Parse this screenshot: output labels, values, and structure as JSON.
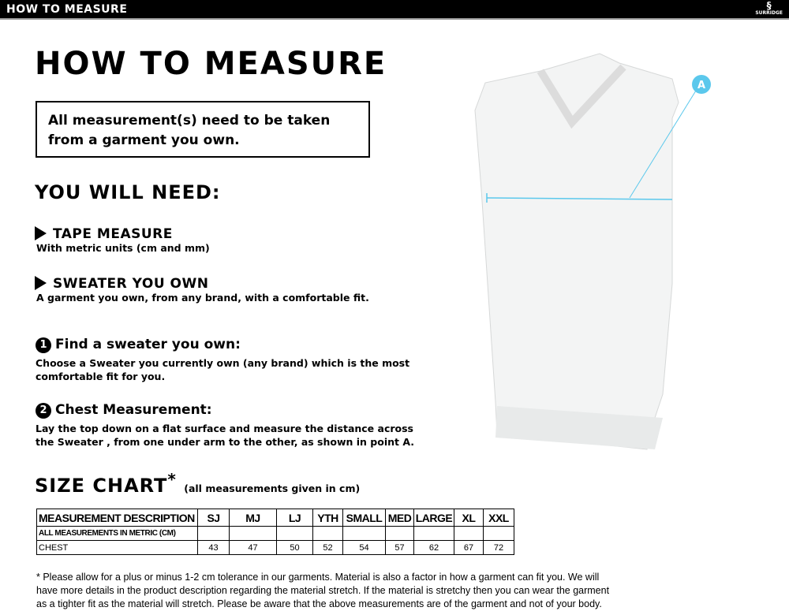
{
  "header": {
    "title": "HOW TO MEASURE",
    "brand": "SURRIDGE"
  },
  "page_title": "HOW TO MEASURE",
  "notice": "All measurement(s) need to be taken from a garment you own.",
  "you_will_need": {
    "title": "YOU WILL NEED:",
    "items": [
      {
        "title": "TAPE MEASURE",
        "desc": "With metric units (cm and mm)"
      },
      {
        "title": "SWEATER YOU OWN",
        "desc": "A garment you own, from any brand, with a comfortable fit."
      }
    ]
  },
  "steps": [
    {
      "num": "1",
      "title": "Find a sweater you own:",
      "desc": "Choose a Sweater you currently own (any brand) which is the most comfortable fit for you."
    },
    {
      "num": "2",
      "title": "Chest Measurement:",
      "desc": "Lay the top down on a flat surface and measure the distance across the Sweater , from one under arm to the other, as shown in point A."
    }
  ],
  "diagram": {
    "point_label": "A",
    "accent": "#5bc8ec"
  },
  "size_chart": {
    "title": "SIZE CHART",
    "asterisk": "*",
    "note": "(all measurements given in cm)",
    "header": [
      "MEASUREMENT DESCRIPTION",
      "SJ",
      "MJ",
      "LJ",
      "YTH",
      "SMALL",
      "MED",
      "LARGE",
      "XL",
      "XXL"
    ],
    "rows": [
      [
        "ALL MEASUREMENTS IN METRIC (CM)",
        "",
        "",
        "",
        "",
        "",
        "",
        "",
        "",
        ""
      ],
      [
        "CHEST",
        "43",
        "47",
        "50",
        "52",
        "54",
        "57",
        "62",
        "67",
        "72"
      ]
    ]
  },
  "footnote": "* Please allow for a plus or minus 1-2 cm tolerance in our garments. Material is also a factor in how a garment can fit you. We will have more details in the product description regarding the material stretch.  If the material is stretchy then you can wear the garment as a tighter fit as the material will stretch.  Please be aware that the above measurements are of the garment and not of your body."
}
